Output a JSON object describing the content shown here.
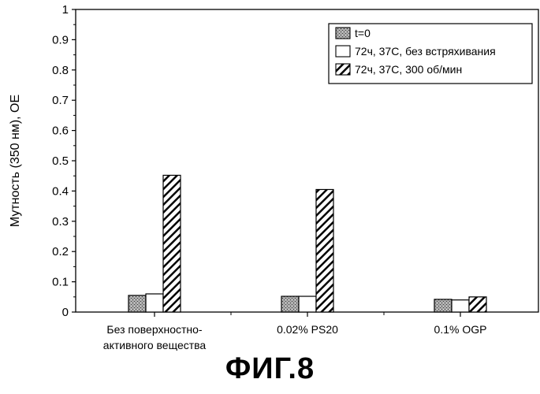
{
  "chart_data": {
    "type": "bar",
    "title": "",
    "ylabel": "Мутность (350 нм), OE",
    "xlabel": "",
    "ylim": [
      0,
      1
    ],
    "yticks": [
      "0",
      "0.1",
      "0.2",
      "0.3",
      "0.4",
      "0.5",
      "0.6",
      "0.7",
      "0.8",
      "0.9",
      "1"
    ],
    "categories": [
      [
        "Без поверхностно-",
        "активного вещества"
      ],
      [
        "0.02% PS20"
      ],
      [
        "0.1% OGP"
      ]
    ],
    "series": [
      {
        "name": "t=0",
        "values": [
          0.055,
          0.052,
          0.042
        ],
        "pattern": "stipple"
      },
      {
        "name": "72ч, 37C, без встряхивания",
        "values": [
          0.06,
          0.052,
          0.04
        ],
        "pattern": "white"
      },
      {
        "name": "72ч, 37C, 300 об/мин",
        "values": [
          0.452,
          0.405,
          0.05
        ],
        "pattern": "hatch"
      }
    ],
    "legend_position": "top-right",
    "grid": false
  },
  "caption": "ФИГ.8"
}
